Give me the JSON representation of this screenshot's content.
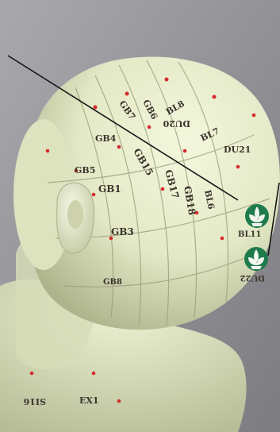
{
  "colors": {
    "background": "#8d8c91",
    "model_body": "#e4e8c8",
    "model_shadow": "#b9bf98",
    "meridian_line": "#9aa07a",
    "point_red": "#d62b2b",
    "label_ink": "#3b332c",
    "badge_green": "#1f7a4c",
    "badge_white": "#f3f6ef",
    "pointer_line": "#151515"
  },
  "labels": {
    "gb15": "GB15",
    "gb1": "GB1",
    "gb3": "GB3",
    "gb17": "GB17",
    "gb18": "GB18",
    "bl6": "BL6",
    "bl7": "BL7",
    "bl8": "BL8",
    "gb6": "GB6",
    "gb7": "GB7",
    "du20": "DU20",
    "du21": "DU21",
    "gb4": "GB4",
    "gb5": "GB5",
    "gb8": "GB8",
    "ex1": "EX1",
    "si16": "SI16",
    "bl11": "BL11",
    "du22": "DU22"
  },
  "icons": {
    "badge_upper": "lotus-logo-icon",
    "badge_lower": "lotus-logo-icon"
  }
}
